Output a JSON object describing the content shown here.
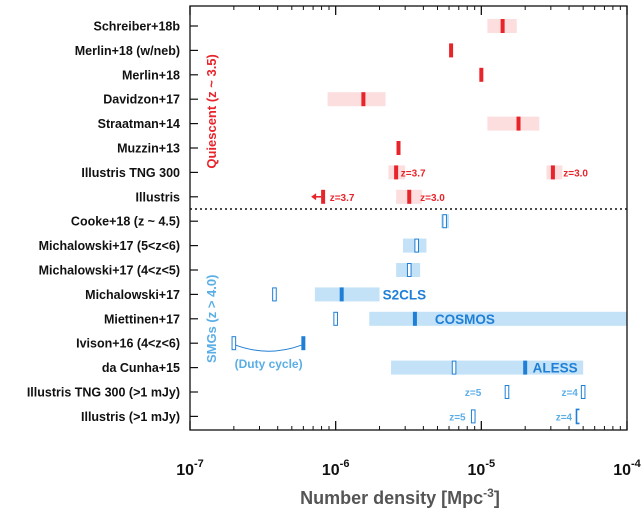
{
  "chart_data": {
    "type": "range-plot",
    "xlabel_main": "Number density [Mpc",
    "xlabel_exp": "-3",
    "xlabel_end": "]",
    "xscale": "log",
    "xlim": [
      1e-07,
      0.0001
    ],
    "ticks": [
      {
        "base": "10",
        "exp": "-7",
        "value": 1e-07
      },
      {
        "base": "10",
        "exp": "-6",
        "value": 1e-06
      },
      {
        "base": "10",
        "exp": "-5",
        "value": 1e-05
      },
      {
        "base": "10",
        "exp": "-4",
        "value": 0.0001
      }
    ],
    "group_labels": {
      "quiescent": "Quiescent (z ~ 3.5)",
      "smg": "SMGs (z > 4.0)"
    },
    "colors": {
      "quiescent_mark": "#e8242b",
      "quiescent_range": "#fcdede",
      "smg_mark": "#1f7fd6",
      "smg_range": "#c3e2f7",
      "smg_text": "#5aaee6"
    },
    "rows": [
      {
        "label": "Schreiber+18b",
        "group": "quiescent",
        "ranges": [
          [
            1.1e-05,
            1.75e-05
          ]
        ],
        "marks": [
          {
            "x": 1.4e-05,
            "style": "solid"
          }
        ]
      },
      {
        "label": "Merlin+18 (w/neb)",
        "group": "quiescent",
        "ranges": [],
        "marks": [
          {
            "x": 6.2e-06,
            "style": "solid"
          }
        ]
      },
      {
        "label": "Merlin+18",
        "group": "quiescent",
        "ranges": [],
        "marks": [
          {
            "x": 1e-05,
            "style": "solid"
          }
        ]
      },
      {
        "label": "Davidzon+17",
        "group": "quiescent",
        "ranges": [
          [
            8.8e-07,
            2.2e-06
          ]
        ],
        "marks": [
          {
            "x": 1.55e-06,
            "style": "solid"
          }
        ]
      },
      {
        "label": "Straatman+14",
        "group": "quiescent",
        "ranges": [
          [
            1.1e-05,
            2.5e-05
          ]
        ],
        "marks": [
          {
            "x": 1.8e-05,
            "style": "solid"
          }
        ]
      },
      {
        "label": "Muzzin+13",
        "group": "quiescent",
        "ranges": [],
        "marks": [
          {
            "x": 2.7e-06,
            "style": "solid"
          }
        ]
      },
      {
        "label": "Illustris TNG 300",
        "group": "quiescent",
        "ranges": [
          [
            2.3e-06,
            3e-06
          ],
          [
            2.8e-05,
            3.6e-05
          ]
        ],
        "marks": [
          {
            "x": 2.6e-06,
            "style": "solid"
          },
          {
            "x": 3.1e-05,
            "style": "solid"
          }
        ],
        "annotations": [
          {
            "text": "z=3.7",
            "x": 2.8e-06
          },
          {
            "text": "z=3.0",
            "x": 3.65e-05
          }
        ]
      },
      {
        "label": "Illustris",
        "group": "quiescent",
        "ranges": [
          [
            2.6e-06,
            3.9e-06
          ]
        ],
        "marks": [
          {
            "x": 8.2e-07,
            "style": "solid"
          },
          {
            "x": 3.2e-06,
            "style": "solid"
          }
        ],
        "upper_limit": 8.2e-07,
        "annotations": [
          {
            "text": "z=3.7",
            "x": 9.1e-07
          },
          {
            "text": "z=3.0",
            "x": 3.8e-06
          }
        ]
      },
      {
        "label": "Cooke+18 (z ~ 4.5)",
        "group": "smg",
        "ranges": [
          [
            5.3e-06,
            6e-06
          ]
        ],
        "marks": [
          {
            "x": 5.6e-06,
            "style": "open"
          }
        ]
      },
      {
        "label": "Michalowski+17 (5<z<6)",
        "group": "smg",
        "ranges": [
          [
            2.9e-06,
            4.2e-06
          ]
        ],
        "marks": [
          {
            "x": 3.6e-06,
            "style": "open"
          }
        ]
      },
      {
        "label": "Michalowski+17 (4<z<5)",
        "group": "smg",
        "ranges": [
          [
            2.6e-06,
            3.8e-06
          ]
        ],
        "marks": [
          {
            "x": 3.2e-06,
            "style": "open"
          }
        ]
      },
      {
        "label": "Michalowski+17",
        "group": "smg",
        "ranges": [
          [
            7.2e-07,
            2e-06
          ]
        ],
        "marks": [
          {
            "x": 3.8e-07,
            "style": "open"
          },
          {
            "x": 1.1e-06,
            "style": "solid"
          }
        ],
        "annotations": [
          {
            "text": "S2CLS",
            "x": 2.1e-06,
            "size": "large"
          }
        ]
      },
      {
        "label": "Miettinen+17",
        "group": "smg",
        "ranges": [
          [
            1.7e-06,
            0.0001
          ]
        ],
        "marks": [
          {
            "x": 1e-06,
            "style": "open"
          },
          {
            "x": 3.5e-06,
            "style": "solid"
          }
        ],
        "annotations": [
          {
            "text": "COSMOS",
            "x": 4.8e-06,
            "size": "large"
          }
        ]
      },
      {
        "label": "Ivison+16 (4<z<6)",
        "group": "smg",
        "ranges": [],
        "marks": [
          {
            "x": 2e-07,
            "style": "open"
          },
          {
            "x": 6e-07,
            "style": "solid"
          }
        ],
        "duty_cycle": [
          2e-07,
          6e-07
        ]
      },
      {
        "label": "da Cunha+15",
        "group": "smg",
        "ranges": [
          [
            2.4e-06,
            5e-05
          ]
        ],
        "marks": [
          {
            "x": 6.5e-06,
            "style": "open"
          },
          {
            "x": 2e-05,
            "style": "solid"
          }
        ],
        "annotations": [
          {
            "text": "ALESS",
            "x": 2.25e-05,
            "size": "large"
          }
        ]
      },
      {
        "label": "Illustris TNG 300 (>1 mJy)",
        "group": "smg",
        "ranges": [],
        "marks": [
          {
            "x": 1.5e-05,
            "style": "open"
          },
          {
            "x": 5e-05,
            "style": "open"
          }
        ],
        "annotations": [
          {
            "text": "z=5",
            "x": 1e-05,
            "anchor": "end"
          },
          {
            "text": "z=4",
            "x": 4.6e-05,
            "anchor": "end"
          }
        ]
      },
      {
        "label": "Illustris (>1 mJy)",
        "group": "smg",
        "ranges": [],
        "marks": [
          {
            "x": 8.8e-06,
            "style": "open"
          },
          {
            "x": 4.5e-05,
            "style": "bracket"
          }
        ],
        "annotations": [
          {
            "text": "z=5",
            "x": 7.8e-06,
            "anchor": "end"
          },
          {
            "text": "z=4",
            "x": 4.2e-05,
            "anchor": "end"
          }
        ]
      }
    ],
    "duty_cycle_label": "(Duty cycle)",
    "grid": false,
    "legend": "none"
  }
}
